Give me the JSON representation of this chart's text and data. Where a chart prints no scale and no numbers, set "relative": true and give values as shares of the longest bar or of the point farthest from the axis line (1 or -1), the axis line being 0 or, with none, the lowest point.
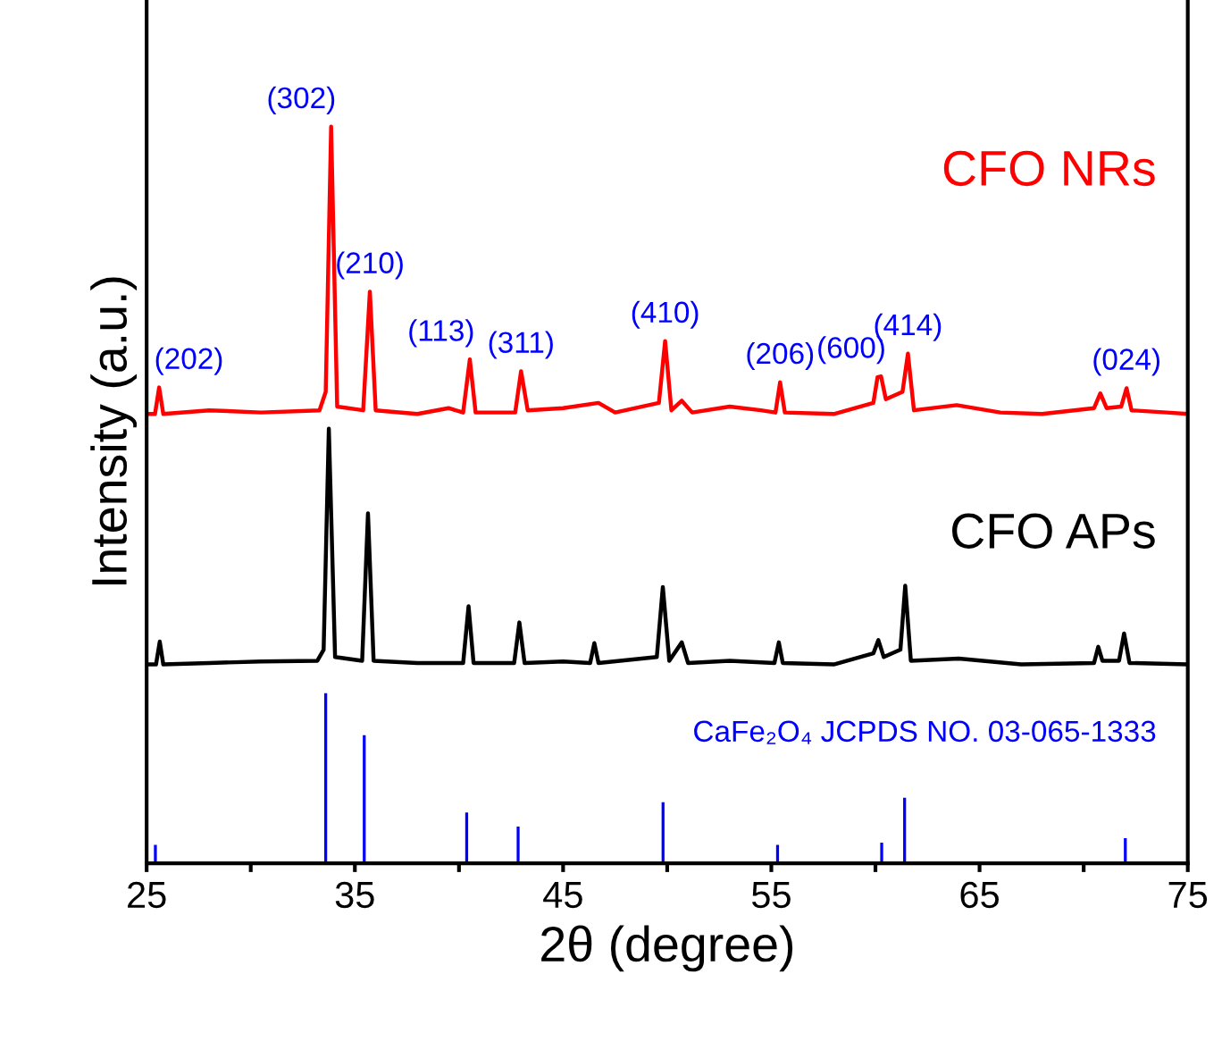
{
  "chart_data": {
    "type": "line",
    "relative": true,
    "xlabel": "2θ (degree)",
    "ylabel": "Intensity (a.u.)",
    "xlim": [
      25,
      75
    ],
    "xticks": [
      25,
      {
        "value": 30,
        "label": null
      },
      35,
      {
        "value": 40,
        "label": null
      },
      45,
      {
        "value": 50,
        "label": null
      },
      55,
      {
        "value": 60,
        "label": null
      },
      65,
      {
        "value": 70,
        "label": null
      },
      75
    ],
    "series": [
      {
        "name": "CFO NRs",
        "color": "#ff0000",
        "x": [
          25.0,
          25.4,
          25.6,
          25.8,
          28.0,
          30.5,
          33.3,
          33.6,
          33.86,
          34.15,
          35.4,
          35.72,
          36.0,
          38.0,
          39.5,
          40.2,
          40.52,
          40.8,
          42.7,
          42.98,
          43.3,
          45.0,
          46.7,
          47.5,
          49.6,
          49.9,
          50.2,
          50.7,
          51.2,
          53.0,
          54.5,
          55.2,
          55.42,
          55.65,
          58.0,
          59.9,
          60.1,
          60.27,
          60.5,
          61.3,
          61.56,
          61.85,
          63.9,
          66.0,
          68.0,
          70.5,
          70.8,
          71.1,
          71.8,
          72.06,
          72.3,
          74.0,
          75.0
        ],
        "values": [
          0.61,
          0.61,
          0.646,
          0.61,
          0.615,
          0.612,
          0.615,
          0.64,
          1.0,
          0.62,
          0.615,
          0.776,
          0.615,
          0.61,
          0.618,
          0.612,
          0.684,
          0.612,
          0.612,
          0.668,
          0.615,
          0.618,
          0.625,
          0.612,
          0.625,
          0.709,
          0.615,
          0.628,
          0.612,
          0.62,
          0.615,
          0.612,
          0.653,
          0.612,
          0.61,
          0.625,
          0.66,
          0.661,
          0.63,
          0.64,
          0.692,
          0.615,
          0.622,
          0.612,
          0.61,
          0.618,
          0.638,
          0.618,
          0.62,
          0.645,
          0.615,
          0.612,
          0.61
        ]
      },
      {
        "name": "CFO APs",
        "color": "#000000",
        "x": [
          25.0,
          25.45,
          25.63,
          25.8,
          28.0,
          30.5,
          33.2,
          33.5,
          33.75,
          34.05,
          35.35,
          35.63,
          35.9,
          38.0,
          40.2,
          40.46,
          40.7,
          42.65,
          42.9,
          43.15,
          45.0,
          46.3,
          46.5,
          46.7,
          49.5,
          49.79,
          50.1,
          50.7,
          51.0,
          53.0,
          55.15,
          55.36,
          55.55,
          58.0,
          59.9,
          60.14,
          60.4,
          61.2,
          61.43,
          61.7,
          64.0,
          67.0,
          70.5,
          70.7,
          70.9,
          71.7,
          71.94,
          72.2,
          75.0
        ],
        "values": [
          0.27,
          0.27,
          0.301,
          0.27,
          0.272,
          0.274,
          0.275,
          0.29,
          0.59,
          0.28,
          0.275,
          0.475,
          0.275,
          0.272,
          0.272,
          0.349,
          0.272,
          0.272,
          0.327,
          0.272,
          0.274,
          0.272,
          0.299,
          0.272,
          0.28,
          0.375,
          0.275,
          0.3,
          0.272,
          0.275,
          0.272,
          0.3,
          0.272,
          0.27,
          0.285,
          0.303,
          0.28,
          0.29,
          0.377,
          0.275,
          0.278,
          0.27,
          0.272,
          0.294,
          0.275,
          0.275,
          0.312,
          0.272,
          0.27
        ]
      },
      {
        "name": "CaFe₂O₄ JCPDS NO. 03-065-1333",
        "type": "bar",
        "color": "#0000ff",
        "x": [
          25.42,
          33.6,
          35.45,
          40.37,
          42.84,
          49.8,
          55.3,
          60.3,
          61.4,
          72.0
        ],
        "values": [
          0.025,
          0.231,
          0.174,
          0.069,
          0.05,
          0.083,
          0.025,
          0.028,
          0.089,
          0.034
        ]
      }
    ],
    "annotations": [
      {
        "text": "(202)",
        "x": 25.6,
        "y": 0.646
      },
      {
        "text": "(302)",
        "x": 33.86,
        "y": 1.0
      },
      {
        "text": "(210)",
        "x": 35.72,
        "y": 0.776
      },
      {
        "text": "(113)",
        "x": 40.52,
        "y": 0.684
      },
      {
        "text": "(311)",
        "x": 42.98,
        "y": 0.668
      },
      {
        "text": "(410)",
        "x": 49.9,
        "y": 0.709
      },
      {
        "text": "(206)",
        "x": 55.42,
        "y": 0.653
      },
      {
        "text": "(600)",
        "x": 60.27,
        "y": 0.661
      },
      {
        "text": "(414)",
        "x": 61.56,
        "y": 0.692
      },
      {
        "text": "(024)",
        "x": 72.06,
        "y": 0.645
      }
    ]
  }
}
